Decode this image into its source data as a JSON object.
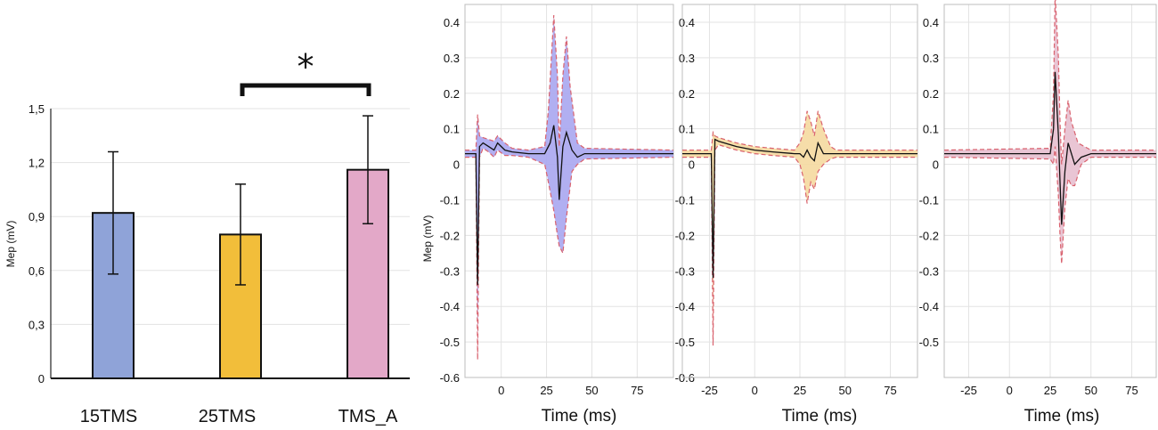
{
  "chart_data": [
    {
      "type": "bar",
      "ylabel": "Mep (mV)",
      "categories": [
        "15TMS",
        "25TMS",
        "TMS_A"
      ],
      "values": [
        0.92,
        0.8,
        1.16
      ],
      "errors": [
        0.34,
        0.28,
        0.3
      ],
      "colors": [
        "#8fa3d8",
        "#f2be3a",
        "#e3a8c8"
      ],
      "ylim": [
        0,
        1.5
      ],
      "yticks": [
        "0",
        "0,3",
        "0,6",
        "0,9",
        "1,2",
        "1,5"
      ],
      "significance": {
        "between": [
          "25TMS",
          "TMS_A"
        ],
        "label": "*"
      }
    },
    {
      "type": "line",
      "xlabel": "Time (ms)",
      "ylabel": "Mep (mV)",
      "xlim": [
        -20,
        95
      ],
      "ylim": [
        -0.6,
        0.45
      ],
      "xticks": [
        "0",
        "25",
        "50",
        "75"
      ],
      "yticks": [
        "-0.6",
        "-0.5",
        "-0.4",
        "-0.3",
        "-0.2",
        "-0.1",
        "0",
        "0.1",
        "0.2",
        "0.3",
        "0.4"
      ],
      "fill": "#a9a6ef",
      "mean": [
        [
          -20,
          0.03
        ],
        [
          -14,
          0.03
        ],
        [
          -13,
          -0.34
        ],
        [
          -12,
          0.05
        ],
        [
          -10,
          0.06
        ],
        [
          -7,
          0.05
        ],
        [
          -4,
          0.04
        ],
        [
          -2,
          0.06
        ],
        [
          2,
          0.04
        ],
        [
          6,
          0.035
        ],
        [
          15,
          0.03
        ],
        [
          24,
          0.03
        ],
        [
          27,
          0.06
        ],
        [
          29,
          0.11
        ],
        [
          31,
          0.02
        ],
        [
          32,
          -0.1
        ],
        [
          34,
          0.05
        ],
        [
          36,
          0.09
        ],
        [
          39,
          0.04
        ],
        [
          42,
          0.02
        ],
        [
          46,
          0.03
        ],
        [
          95,
          0.03
        ]
      ],
      "upper": [
        [
          -20,
          0.04
        ],
        [
          -14,
          0.04
        ],
        [
          -13,
          0.14
        ],
        [
          -12,
          0.08
        ],
        [
          -10,
          0.075
        ],
        [
          -7,
          0.07
        ],
        [
          -4,
          0.065
        ],
        [
          -2,
          0.08
        ],
        [
          2,
          0.06
        ],
        [
          6,
          0.045
        ],
        [
          15,
          0.04
        ],
        [
          24,
          0.05
        ],
        [
          26,
          0.15
        ],
        [
          29,
          0.42
        ],
        [
          31,
          0.25
        ],
        [
          32,
          0.05
        ],
        [
          34,
          0.25
        ],
        [
          36,
          0.36
        ],
        [
          38,
          0.22
        ],
        [
          42,
          0.06
        ],
        [
          46,
          0.045
        ],
        [
          95,
          0.04
        ]
      ],
      "lower": [
        [
          -20,
          0.02
        ],
        [
          -14,
          0.02
        ],
        [
          -13,
          -0.55
        ],
        [
          -12,
          0.02
        ],
        [
          -10,
          0.045
        ],
        [
          -7,
          0.035
        ],
        [
          -4,
          0.02
        ],
        [
          -2,
          0.04
        ],
        [
          2,
          0.025
        ],
        [
          6,
          0.025
        ],
        [
          15,
          0.02
        ],
        [
          24,
          0.0
        ],
        [
          26,
          -0.05
        ],
        [
          29,
          -0.13
        ],
        [
          31,
          -0.2
        ],
        [
          32,
          -0.23
        ],
        [
          34,
          -0.25
        ],
        [
          36,
          -0.15
        ],
        [
          39,
          -0.02
        ],
        [
          42,
          0.0
        ],
        [
          46,
          0.015
        ],
        [
          95,
          0.02
        ]
      ]
    },
    {
      "type": "line",
      "xlabel": "Time (ms)",
      "ylabel": "",
      "xlim": [
        -40,
        90
      ],
      "ylim": [
        -0.6,
        0.45
      ],
      "xticks": [
        "-25",
        "0",
        "25",
        "50",
        "75"
      ],
      "yticks": [
        "-0.6",
        "-0.5",
        "-0.4",
        "-0.3",
        "-0.2",
        "-0.1",
        "0",
        "0.1",
        "0.2",
        "0.3",
        "0.4"
      ],
      "fill": "#f5d9a0",
      "mean": [
        [
          -40,
          0.03
        ],
        [
          -24,
          0.03
        ],
        [
          -23,
          -0.32
        ],
        [
          -22,
          0.07
        ],
        [
          -20,
          0.065
        ],
        [
          -10,
          0.05
        ],
        [
          0,
          0.04
        ],
        [
          10,
          0.035
        ],
        [
          22,
          0.03
        ],
        [
          25,
          0.03
        ],
        [
          27,
          0.02
        ],
        [
          29,
          0.04
        ],
        [
          31,
          0.02
        ],
        [
          33,
          0.01
        ],
        [
          35,
          0.06
        ],
        [
          38,
          0.03
        ],
        [
          45,
          0.03
        ],
        [
          90,
          0.03
        ]
      ],
      "upper": [
        [
          -40,
          0.04
        ],
        [
          -24,
          0.04
        ],
        [
          -23,
          0.09
        ],
        [
          -22,
          0.08
        ],
        [
          -20,
          0.075
        ],
        [
          -10,
          0.06
        ],
        [
          0,
          0.05
        ],
        [
          10,
          0.045
        ],
        [
          22,
          0.04
        ],
        [
          25,
          0.06
        ],
        [
          27,
          0.09
        ],
        [
          29,
          0.15
        ],
        [
          31,
          0.12
        ],
        [
          33,
          0.08
        ],
        [
          35,
          0.15
        ],
        [
          38,
          0.1
        ],
        [
          42,
          0.05
        ],
        [
          45,
          0.04
        ],
        [
          90,
          0.04
        ]
      ],
      "lower": [
        [
          -40,
          0.02
        ],
        [
          -24,
          0.02
        ],
        [
          -23,
          -0.51
        ],
        [
          -22,
          0.04
        ],
        [
          -20,
          0.055
        ],
        [
          -10,
          0.04
        ],
        [
          0,
          0.03
        ],
        [
          10,
          0.025
        ],
        [
          22,
          0.02
        ],
        [
          25,
          0.0
        ],
        [
          27,
          -0.04
        ],
        [
          29,
          -0.11
        ],
        [
          31,
          -0.05
        ],
        [
          33,
          -0.07
        ],
        [
          35,
          -0.02
        ],
        [
          38,
          0.0
        ],
        [
          42,
          0.015
        ],
        [
          45,
          0.02
        ],
        [
          90,
          0.02
        ]
      ]
    },
    {
      "type": "line",
      "xlabel": "Time (ms)",
      "ylabel": "",
      "xlim": [
        -40,
        90
      ],
      "ylim": [
        -0.6,
        0.45
      ],
      "xticks": [
        "-25",
        "0",
        "25",
        "50",
        "75"
      ],
      "yticks": [
        "-0.5",
        "-0.4",
        "-0.3",
        "-0.2",
        "-0.1",
        "0",
        "0.1",
        "0.2",
        "0.3",
        "0.4"
      ],
      "fill": "#e7bfcf",
      "mean": [
        [
          -40,
          0.03
        ],
        [
          25,
          0.03
        ],
        [
          27,
          0.1
        ],
        [
          28,
          0.26
        ],
        [
          30,
          0.08
        ],
        [
          31,
          -0.05
        ],
        [
          32,
          -0.17
        ],
        [
          34,
          -0.02
        ],
        [
          36,
          0.06
        ],
        [
          38,
          0.03
        ],
        [
          40,
          0.0
        ],
        [
          44,
          0.02
        ],
        [
          50,
          0.03
        ],
        [
          90,
          0.03
        ]
      ],
      "upper": [
        [
          -40,
          0.04
        ],
        [
          25,
          0.045
        ],
        [
          27,
          0.2
        ],
        [
          28,
          0.48
        ],
        [
          30,
          0.3
        ],
        [
          31,
          0.12
        ],
        [
          32,
          0.0
        ],
        [
          34,
          0.1
        ],
        [
          36,
          0.18
        ],
        [
          38,
          0.12
        ],
        [
          42,
          0.06
        ],
        [
          50,
          0.04
        ],
        [
          90,
          0.04
        ]
      ],
      "lower": [
        [
          -40,
          0.02
        ],
        [
          25,
          0.015
        ],
        [
          27,
          0.0
        ],
        [
          28,
          0.05
        ],
        [
          30,
          -0.09
        ],
        [
          31,
          -0.2
        ],
        [
          32,
          -0.28
        ],
        [
          34,
          -0.12
        ],
        [
          36,
          -0.04
        ],
        [
          38,
          -0.06
        ],
        [
          40,
          -0.06
        ],
        [
          44,
          0.0
        ],
        [
          50,
          0.02
        ],
        [
          90,
          0.02
        ]
      ]
    }
  ]
}
